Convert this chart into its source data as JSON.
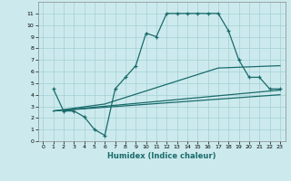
{
  "title": "",
  "xlabel": "Humidex (Indice chaleur)",
  "bg_color": "#cceaed",
  "line_color": "#1a6b6b",
  "grid_color": "#aad4d8",
  "xlim": [
    -0.5,
    23.5
  ],
  "ylim": [
    0,
    12
  ],
  "xticks": [
    0,
    1,
    2,
    3,
    4,
    5,
    6,
    7,
    8,
    9,
    10,
    11,
    12,
    13,
    14,
    15,
    16,
    17,
    18,
    19,
    20,
    21,
    22,
    23
  ],
  "yticks": [
    0,
    1,
    2,
    3,
    4,
    5,
    6,
    7,
    8,
    9,
    10,
    11
  ],
  "curve1_x": [
    1,
    2,
    3,
    4,
    5,
    6,
    7,
    8,
    9,
    10,
    11,
    12,
    13,
    14,
    15,
    16,
    17,
    18,
    19,
    20,
    21,
    22,
    23
  ],
  "curve1_y": [
    4.5,
    2.6,
    2.6,
    2.1,
    1.0,
    0.5,
    4.5,
    5.5,
    6.5,
    9.3,
    9.0,
    11.0,
    11.0,
    11.0,
    11.0,
    11.0,
    11.0,
    9.5,
    7.0,
    5.5,
    5.5,
    4.5,
    4.5
  ],
  "line2_x": [
    1,
    6,
    17,
    23
  ],
  "line2_y": [
    2.6,
    3.2,
    6.3,
    6.5
  ],
  "line3_x": [
    1,
    23
  ],
  "line3_y": [
    2.6,
    4.4
  ],
  "line4_x": [
    1,
    23
  ],
  "line4_y": [
    2.6,
    4.0
  ]
}
